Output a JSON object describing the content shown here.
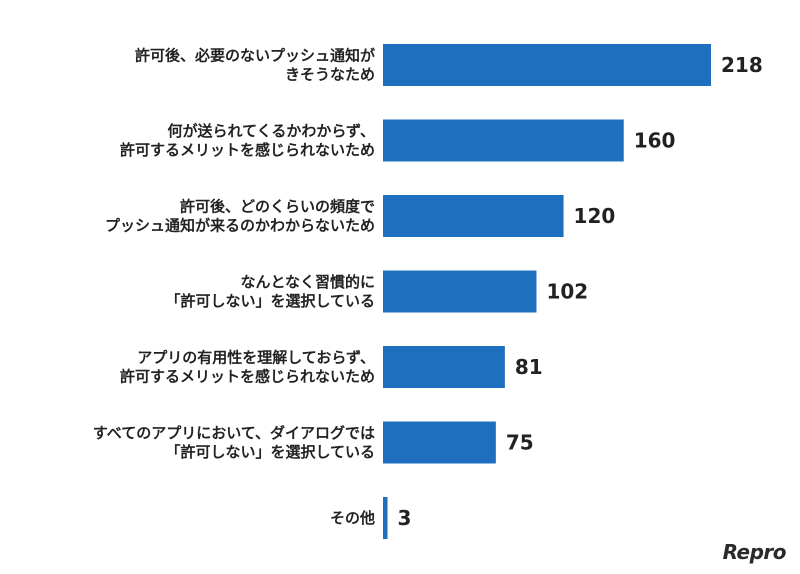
{
  "chart_data": {
    "type": "bar",
    "orientation": "horizontal",
    "categories": [
      [
        "許可後、必要のないプッシュ通知が",
        "きそうなため"
      ],
      [
        "何が送られてくるかわからず、",
        "許可するメリットを感じられないため"
      ],
      [
        "許可後、どのくらいの頻度で",
        "プッシュ通知が来るのかわからないため"
      ],
      [
        "なんとなく習慣的に",
        "「許可しない」を選択している"
      ],
      [
        "アプリの有用性を理解しておらず、",
        "許可するメリットを感じられないため"
      ],
      [
        "すべてのアプリにおいて、ダイアログでは",
        "「許可しない」を選択している"
      ],
      [
        "その他"
      ]
    ],
    "values": [
      218,
      160,
      120,
      102,
      81,
      75,
      3
    ],
    "xlim": [
      0,
      218
    ],
    "grid": false,
    "legend": "none",
    "bar_color": "#1f6fbf"
  },
  "brand": {
    "logo_text": "Repro"
  }
}
